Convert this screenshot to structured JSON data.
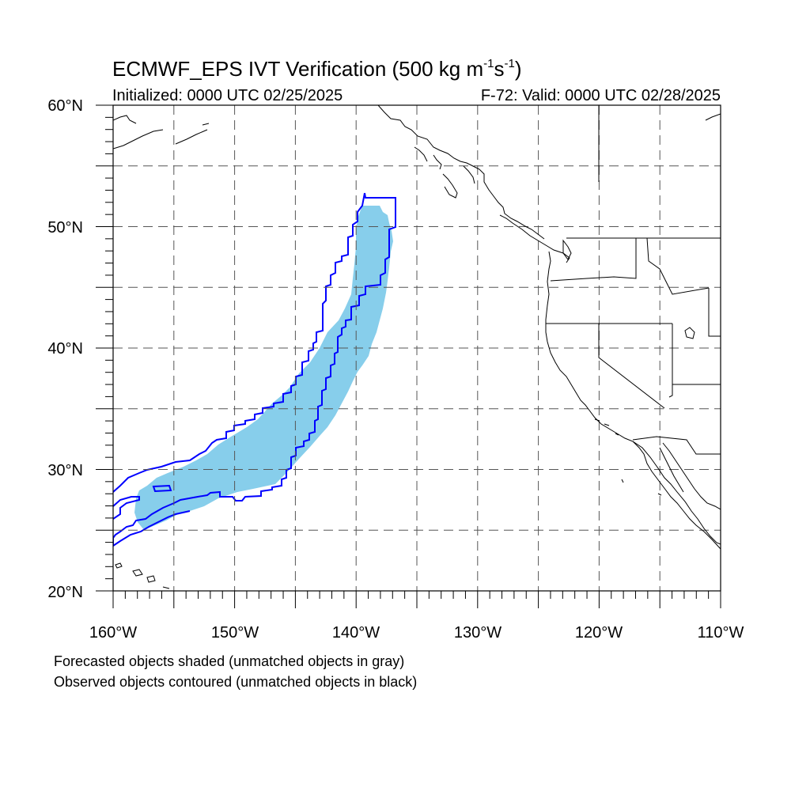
{
  "title": {
    "main": "ECMWF_EPS IVT Verification (500 kg m",
    "unit_sup1": "-1",
    "unit_mid": "s",
    "unit_sup2": "-1",
    "unit_end": ")"
  },
  "initialized": "Initialized: 0000 UTC 02/25/2025",
  "valid": "F-72: Valid: 0000 UTC 02/28/2025",
  "map": {
    "lat_range": [
      20,
      60
    ],
    "lon_range": [
      -160,
      -110
    ],
    "lat_labels": [
      {
        "deg": 60,
        "text": "60°N"
      },
      {
        "deg": 50,
        "text": "50°N"
      },
      {
        "deg": 40,
        "text": "40°N"
      },
      {
        "deg": 30,
        "text": "30°N"
      },
      {
        "deg": 20,
        "text": "20°N"
      }
    ],
    "lon_labels": [
      {
        "deg": -160,
        "text": "160°W"
      },
      {
        "deg": -150,
        "text": "150°W"
      },
      {
        "deg": -140,
        "text": "140°W"
      },
      {
        "deg": -130,
        "text": "130°W"
      },
      {
        "deg": -120,
        "text": "120°W"
      },
      {
        "deg": -110,
        "text": "110°W"
      }
    ],
    "grid_spacing_deg": 5,
    "forecast_fill_color": "#87ceeb",
    "observed_contour_color": "#0000ff",
    "coast_color": "#000000"
  },
  "footnotes": [
    "Forecasted objects shaded (unmatched objects in gray)",
    "Observed objects contoured (unmatched objects in black)"
  ]
}
